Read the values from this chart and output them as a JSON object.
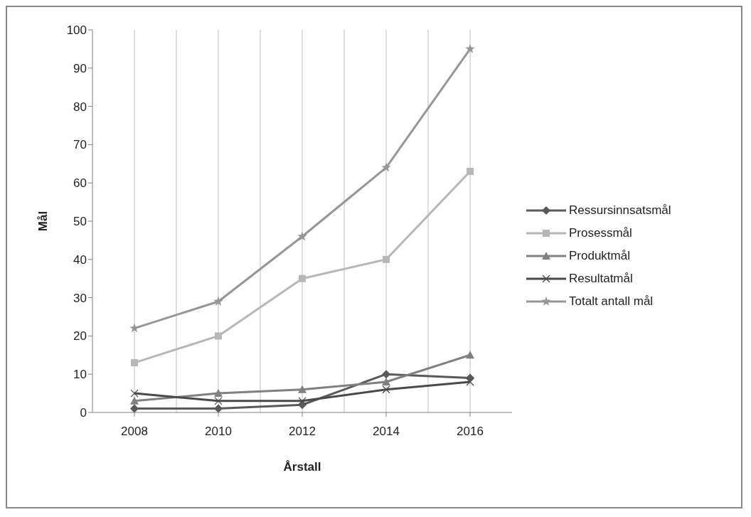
{
  "chart_data": {
    "type": "line",
    "xlabel": "Årstall",
    "ylabel": "Mål",
    "categories": [
      "2008",
      "2010",
      "2012",
      "2014",
      "2016"
    ],
    "series": [
      {
        "name": "Ressursinnsatsmål",
        "color": "#595959",
        "marker": "diamond",
        "values": [
          1,
          1,
          2,
          10,
          9
        ]
      },
      {
        "name": "Prosessmål",
        "color": "#b7b7b7",
        "marker": "square",
        "values": [
          13,
          20,
          35,
          40,
          63
        ]
      },
      {
        "name": "Produktmål",
        "color": "#808080",
        "marker": "triangle",
        "values": [
          3,
          5,
          6,
          8,
          15
        ]
      },
      {
        "name": "Resultatmål",
        "color": "#4a4a4a",
        "marker": "cross",
        "values": [
          5,
          3,
          3,
          6,
          8
        ]
      },
      {
        "name": "Totalt antall mål",
        "color": "#969696",
        "marker": "star",
        "values": [
          22,
          29,
          46,
          64,
          95
        ]
      }
    ],
    "ylim": [
      0,
      100
    ],
    "yticks": [
      0,
      10,
      20,
      30,
      40,
      50,
      60,
      70,
      80,
      90,
      100
    ],
    "grid": "x",
    "legend": "right"
  }
}
